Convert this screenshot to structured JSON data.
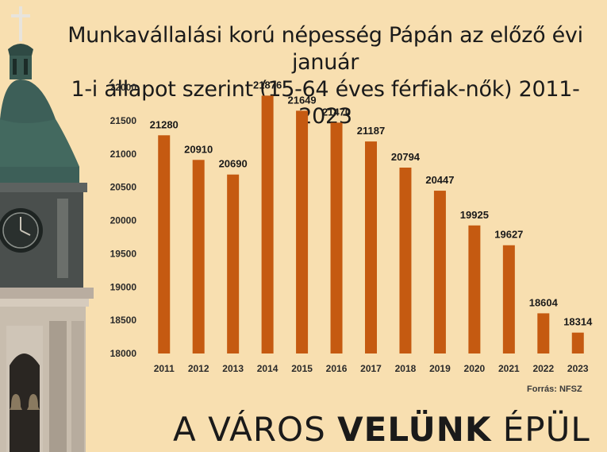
{
  "title_line1": "Munkavállalási korú népesség Pápán az előző évi január",
  "title_line2": "1-i állapot szerint (15-64 éves férfiak-nők) 2011-2023",
  "source": "Forrás: NFSZ",
  "slogan": {
    "part1": "A VÁROS ",
    "part2": "VELÜNK",
    "part3": " ÉPÜL"
  },
  "colors": {
    "bar": "#c55a11",
    "background": "#f8dfb0"
  },
  "chart_data": {
    "type": "bar",
    "title": "Munkavállalási korú népesség Pápán az előző évi január 1-i állapot szerint (15-64 éves férfiak-nők) 2011-2023",
    "categories": [
      "2011",
      "2012",
      "2013",
      "2014",
      "2015",
      "2016",
      "2017",
      "2018",
      "2019",
      "2020",
      "2021",
      "2022",
      "2023"
    ],
    "values": [
      21280,
      20910,
      20690,
      21876,
      21649,
      21470,
      21187,
      20794,
      20447,
      19925,
      19627,
      18604,
      18314
    ],
    "yticks": [
      18000,
      18500,
      19000,
      19500,
      20000,
      20500,
      21000,
      21500,
      22000
    ],
    "ylim": [
      18000,
      22000
    ],
    "xlabel": "",
    "ylabel": "",
    "grid": false,
    "data_labels": true
  }
}
